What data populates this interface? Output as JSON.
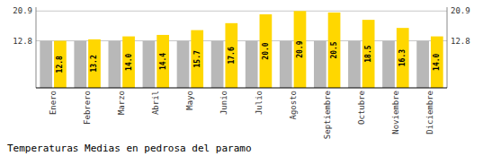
{
  "chart_data": {
    "type": "bar",
    "title": "Temperaturas Medias en pedrosa del paramo",
    "categories": [
      "Enero",
      "Febrero",
      "Marzo",
      "Abril",
      "Mayo",
      "Junio",
      "Julio",
      "Agosto",
      "Septiembre",
      "Octubre",
      "Noviembre",
      "Diciembre"
    ],
    "series": [
      {
        "color": "#B8B8B8",
        "values": [
          12.8,
          12.8,
          12.8,
          12.8,
          12.8,
          12.8,
          12.8,
          12.8,
          12.8,
          12.8,
          12.8,
          12.8
        ]
      },
      {
        "color": "#FFD700",
        "values": [
          12.8,
          13.2,
          14.0,
          14.4,
          15.7,
          17.6,
          20.0,
          20.9,
          20.5,
          18.5,
          16.3,
          14.0
        ],
        "value_labels": [
          "12.8",
          "13.2",
          "14.0",
          "14.4",
          "15.7",
          "17.6",
          "20.0",
          "20.9",
          "20.5",
          "18.5",
          "16.3",
          "14.0"
        ],
        "data_labels": true
      }
    ],
    "ylim": [
      0,
      21.945
    ],
    "yticks": [
      12.8,
      20.9
    ],
    "y2lim": [
      0,
      21.945
    ],
    "y2ticks": [
      12.8,
      20.9
    ],
    "grid": true
  }
}
